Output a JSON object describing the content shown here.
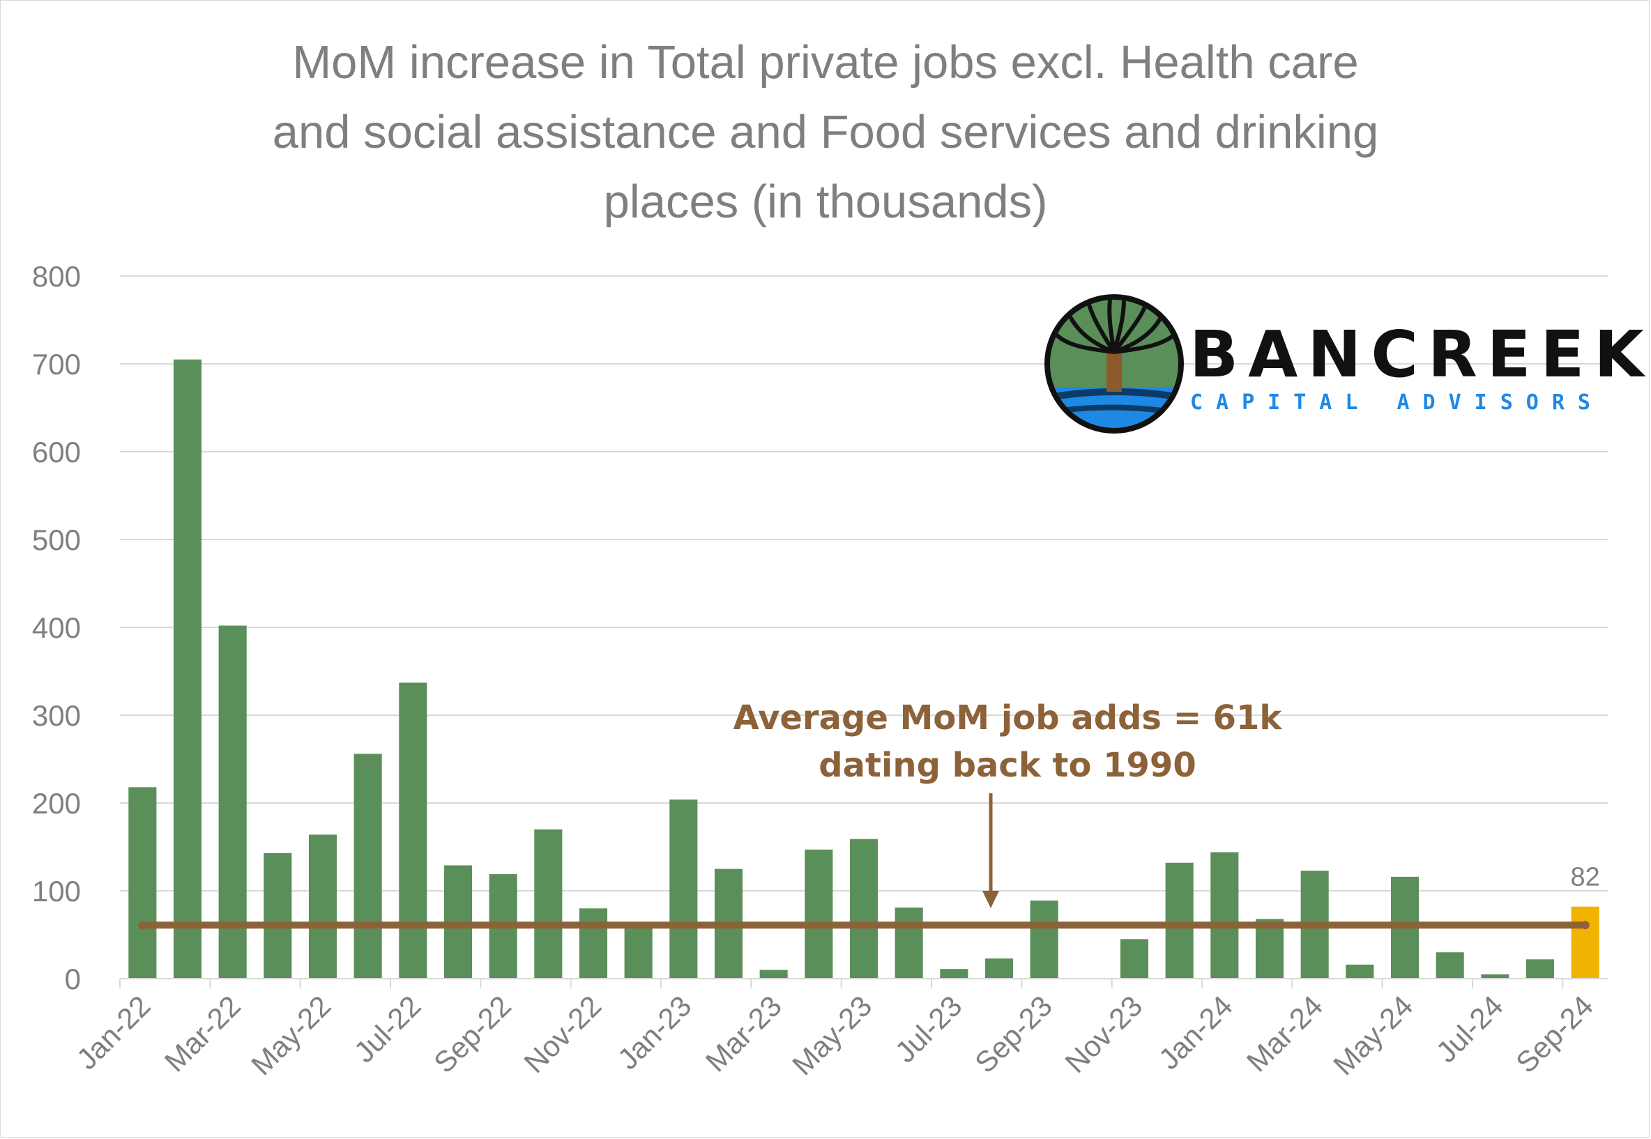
{
  "title_lines": [
    "MoM increase in Total private jobs excl. Health care",
    "and social assistance and Food services and drinking",
    "places (in thousands)"
  ],
  "logo": {
    "name": "BANCREEK",
    "subtitle": "CAPITAL ADVISORS"
  },
  "annotation": {
    "line1": "Average MoM job adds = 61k",
    "line2": "dating back to 1990"
  },
  "colors": {
    "bar": "#5b8f5a",
    "highlight_bar": "#f2b200",
    "average_line": "#8c6239",
    "grid": "#d9d9d9",
    "text": "#7f7f7f"
  },
  "chart_data": {
    "type": "bar",
    "categories": [
      "Jan-22",
      "Feb-22",
      "Mar-22",
      "Apr-22",
      "May-22",
      "Jun-22",
      "Jul-22",
      "Aug-22",
      "Sep-22",
      "Oct-22",
      "Nov-22",
      "Dec-22",
      "Jan-23",
      "Feb-23",
      "Mar-23",
      "Apr-23",
      "May-23",
      "Jun-23",
      "Jul-23",
      "Aug-23",
      "Sep-23",
      "Oct-23",
      "Nov-23",
      "Dec-23",
      "Jan-24",
      "Feb-24",
      "Mar-24",
      "Apr-24",
      "May-24",
      "Jun-24",
      "Jul-24",
      "Aug-24",
      "Sep-24"
    ],
    "x_tick_labels": [
      "Jan-22",
      "Mar-22",
      "May-22",
      "Jul-22",
      "Sep-22",
      "Nov-22",
      "Jan-23",
      "Mar-23",
      "May-23",
      "Jul-23",
      "Sep-23",
      "Nov-23",
      "Jan-24",
      "Mar-24",
      "May-24",
      "Jul-24",
      "Sep-24"
    ],
    "values": [
      218,
      705,
      402,
      143,
      164,
      256,
      337,
      129,
      119,
      170,
      80,
      61,
      204,
      125,
      10,
      147,
      159,
      81,
      11,
      23,
      89,
      0,
      45,
      132,
      144,
      68,
      123,
      16,
      116,
      30,
      5,
      22,
      82
    ],
    "highlight_index": 32,
    "data_labels": [
      {
        "category": "Sep-24",
        "text": "82"
      }
    ],
    "average_line": 61,
    "ylim": [
      0,
      800
    ],
    "yticks": [
      0,
      100,
      200,
      300,
      400,
      500,
      600,
      700,
      800
    ],
    "grid": true,
    "legend": "none"
  }
}
